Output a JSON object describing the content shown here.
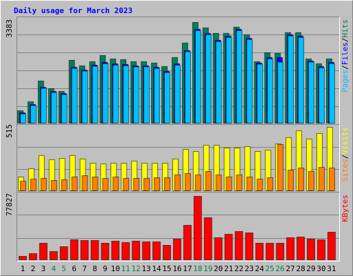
{
  "chart_data": [
    {
      "type": "bar",
      "title": "Daily usage for March 2023",
      "ylim": [
        0,
        3383
      ],
      "yticks": [
        3383
      ],
      "legend_separator": "/",
      "series": [
        {
          "name": "Hits",
          "color": "#00805c",
          "values": [
            418,
            719,
            1415,
            1160,
            1067,
            2111,
            1926,
            2065,
            2273,
            2158,
            2134,
            2065,
            2065,
            2018,
            1902,
            2204,
            2691,
            3383,
            3201,
            3016,
            3016,
            3225,
            2970,
            2065,
            2366,
            2343,
            3039,
            3039,
            2158,
            1995,
            2158
          ]
        },
        {
          "name": "Files",
          "color": "#0000ff",
          "values": [
            348,
            627,
            1206,
            1067,
            998,
            1879,
            1786,
            1949,
            2042,
            1995,
            1972,
            1926,
            1926,
            1879,
            1740,
            1995,
            2436,
            3155,
            3016,
            2784,
            2923,
            3155,
            2854,
            2018,
            2204,
            2204,
            2970,
            2923,
            2088,
            1902,
            2042
          ]
        },
        {
          "name": "Pages",
          "color": "#00c0ff",
          "values": [
            310,
            590,
            1170,
            1030,
            960,
            1840,
            1750,
            1910,
            2000,
            1950,
            1930,
            1890,
            1890,
            1840,
            1700,
            1950,
            2400,
            3110,
            2970,
            2740,
            2880,
            3110,
            2810,
            1980,
            2160,
            2050,
            2930,
            2880,
            2050,
            1860,
            2000
          ]
        }
      ]
    },
    {
      "type": "bar",
      "ylim": [
        0,
        515
      ],
      "yticks": [
        515
      ],
      "series": [
        {
          "name": "Visits",
          "color": "#ffff00",
          "values": [
            112,
            179,
            286,
            252,
            263,
            286,
            258,
            224,
            218,
            224,
            224,
            241,
            224,
            224,
            224,
            258,
            336,
            319,
            370,
            370,
            347,
            347,
            358,
            319,
            330,
            381,
            431,
            487,
            420,
            465,
            515
          ]
        },
        {
          "name": "Sites",
          "color": "#ff8000",
          "values": [
            78,
            95,
            101,
            84,
            90,
            112,
            123,
            112,
            101,
            112,
            101,
            101,
            101,
            106,
            106,
            129,
            140,
            129,
            157,
            129,
            112,
            129,
            112,
            95,
            106,
            375,
            168,
            185,
            157,
            190,
            185
          ]
        }
      ]
    },
    {
      "type": "bar",
      "ylim": [
        0,
        77827
      ],
      "yticks": [
        77827
      ],
      "categories": [
        "1",
        "2",
        "3",
        "4",
        "5",
        "6",
        "7",
        "8",
        "9",
        "10",
        "11",
        "12",
        "13",
        "14",
        "15",
        "16",
        "17",
        "18",
        "19",
        "20",
        "21",
        "22",
        "23",
        "24",
        "25",
        "26",
        "27",
        "28",
        "29",
        "30",
        "31"
      ],
      "category_colors": [
        "#000",
        "#000",
        "#000",
        "#008040",
        "#008040",
        "#000",
        "#000",
        "#000",
        "#000",
        "#000",
        "#008040",
        "#008040",
        "#000",
        "#000",
        "#000",
        "#000",
        "#000",
        "#008040",
        "#008040",
        "#000",
        "#000",
        "#000",
        "#000",
        "#000",
        "#008040",
        "#008040",
        "#000",
        "#000",
        "#000",
        "#000",
        "#000"
      ],
      "series": [
        {
          "name": "KBytes",
          "color": "#ff0000",
          "values": [
            4230,
            7614,
            20304,
            10152,
            16074,
            24534,
            23688,
            23688,
            20304,
            22842,
            21150,
            22842,
            21996,
            21996,
            17766,
            25380,
            42300,
            77827,
            51606,
            27072,
            31302,
            34686,
            32994,
            20304,
            20304,
            20304,
            27072,
            27918,
            25380,
            24534,
            33840
          ]
        }
      ]
    }
  ]
}
